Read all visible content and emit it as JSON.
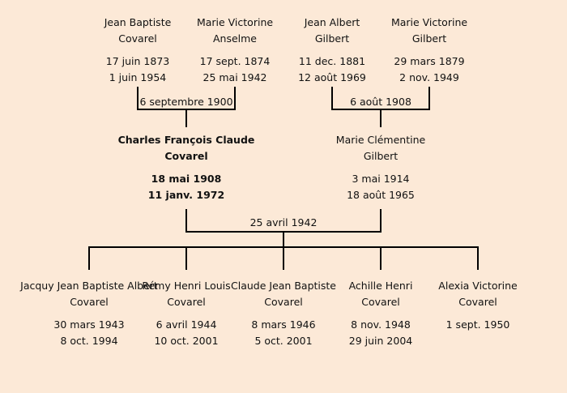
{
  "grandparents": [
    {
      "name1": "Jean Baptiste",
      "name2": "Covarel",
      "birth": "17 juin 1873",
      "death": "1 juin 1954"
    },
    {
      "name1": "Marie Victorine",
      "name2": "Anselme",
      "birth": "17 sept. 1874",
      "death": "25 mai 1942"
    },
    {
      "name1": "Jean Albert",
      "name2": "Gilbert",
      "birth": "11 dec. 1881",
      "death": "12 août 1969"
    },
    {
      "name1": "Marie Victorine",
      "name2": "Gilbert",
      "birth": "29 mars 1879",
      "death": "2 nov. 1949"
    }
  ],
  "marriages": {
    "left": "6 septembre 1900",
    "right": "6 août 1908",
    "center": "25 avril 1942"
  },
  "parents": [
    {
      "name1": "Charles François Claude",
      "name2": "Covarel",
      "birth": "18 mai 1908",
      "death": "11 janv. 1972"
    },
    {
      "name1": "Marie Clémentine",
      "name2": "Gilbert",
      "birth": "3 mai 1914",
      "death": "18 août 1965"
    }
  ],
  "children": [
    {
      "name1": "Jacquy Jean Baptiste Albert",
      "name2": "Covarel",
      "birth": "30 mars 1943",
      "death": "8 oct. 1994"
    },
    {
      "name1": "Rémy Henri Louis",
      "name2": "Covarel",
      "birth": "6 avril 1944",
      "death": "10 oct. 2001"
    },
    {
      "name1": "Claude Jean Baptiste",
      "name2": "Covarel",
      "birth": "8 mars 1946",
      "death": "5 oct. 2001"
    },
    {
      "name1": "Achille Henri",
      "name2": "Covarel",
      "birth": "8 nov. 1948",
      "death": "29 juin 2004"
    },
    {
      "name1": "Alexia Victorine",
      "name2": "Covarel",
      "birth": "1 sept. 1950",
      "death": ""
    }
  ],
  "colors": {
    "background": "#fce9d7",
    "lines": "#000000"
  }
}
